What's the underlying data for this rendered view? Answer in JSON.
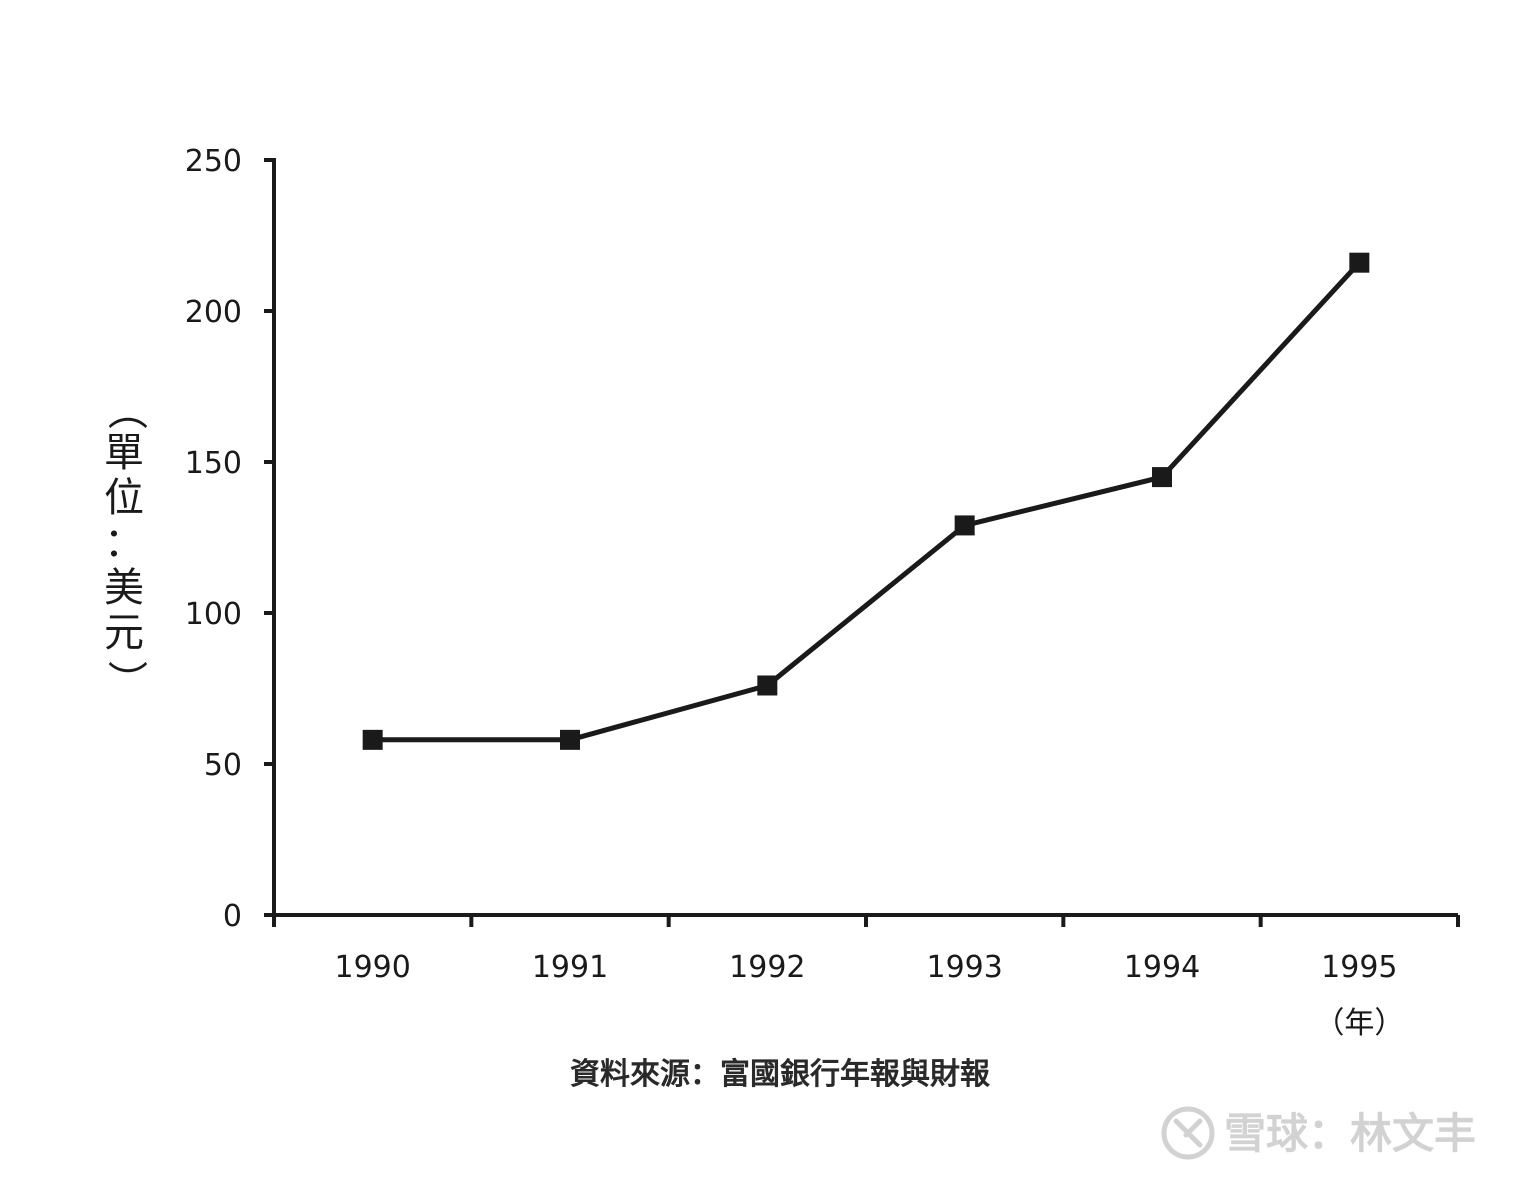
{
  "chart_data": {
    "type": "line",
    "categories": [
      "1990",
      "1991",
      "1992",
      "1993",
      "1994",
      "1995"
    ],
    "series": [
      {
        "values": [
          58,
          58,
          76,
          129,
          145,
          216
        ]
      }
    ],
    "ylim": [
      0,
      250
    ],
    "yticks": [
      0,
      50,
      100,
      150,
      200,
      250
    ],
    "ylabel": "（單位：美元）",
    "xlabel": "（年）",
    "grid": false,
    "marker": "square",
    "line_color": "#1a1a1a"
  },
  "source_note": "資料來源：富國銀行年報與財報",
  "watermark": {
    "icon": "snowball-logo-icon",
    "text": "雪球：林文丰"
  }
}
